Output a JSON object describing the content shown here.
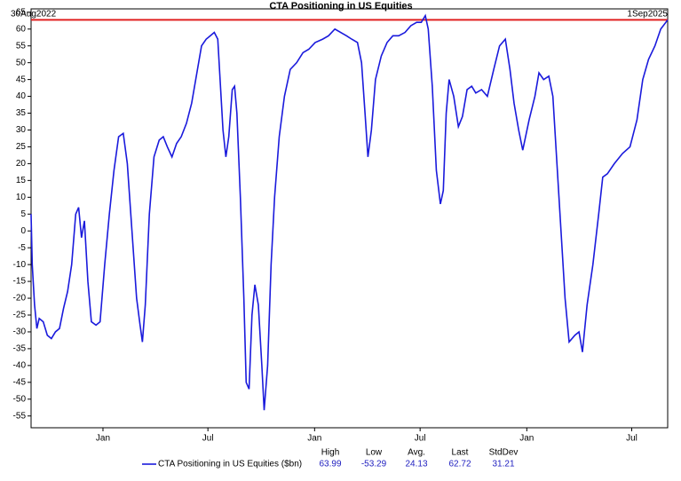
{
  "chart_data": {
    "type": "line",
    "title": "CTA Positioning in US Equities",
    "start_label": "30Aug2022",
    "end_label": "1Sep2025",
    "xlim": [
      "2022-08-30",
      "2025-09-01"
    ],
    "xticks": [
      {
        "value": "2023-01-01",
        "label": "Jan"
      },
      {
        "value": "2023-07-01",
        "label": "Jul"
      },
      {
        "value": "2024-01-01",
        "label": "Jan"
      },
      {
        "value": "2024-07-01",
        "label": "Jul"
      },
      {
        "value": "2025-01-01",
        "label": "Jan"
      },
      {
        "value": "2025-07-01",
        "label": "Jul"
      }
    ],
    "ylim": [
      -58.5,
      66
    ],
    "yticks": [
      65,
      60,
      55,
      50,
      45,
      40,
      35,
      30,
      25,
      20,
      15,
      10,
      5,
      0,
      -5,
      -10,
      -15,
      -20,
      -25,
      -30,
      -35,
      -40,
      -45,
      -50,
      -55
    ],
    "reference_line": {
      "value": 62.72,
      "color": "#e02020"
    },
    "x": [
      "2022-08-30",
      "2022-09-01",
      "2022-09-05",
      "2022-09-09",
      "2022-09-13",
      "2022-09-20",
      "2022-09-27",
      "2022-10-04",
      "2022-10-11",
      "2022-10-18",
      "2022-10-25",
      "2022-11-01",
      "2022-11-08",
      "2022-11-15",
      "2022-11-20",
      "2022-11-25",
      "2022-11-30",
      "2022-12-06",
      "2022-12-12",
      "2022-12-20",
      "2022-12-27",
      "2023-01-04",
      "2023-01-12",
      "2023-01-20",
      "2023-01-28",
      "2023-02-05",
      "2023-02-12",
      "2023-02-20",
      "2023-02-28",
      "2023-03-06",
      "2023-03-10",
      "2023-03-15",
      "2023-03-22",
      "2023-03-30",
      "2023-04-08",
      "2023-04-15",
      "2023-04-22",
      "2023-04-30",
      "2023-05-08",
      "2023-05-16",
      "2023-05-25",
      "2023-06-03",
      "2023-06-12",
      "2023-06-20",
      "2023-06-28",
      "2023-07-05",
      "2023-07-12",
      "2023-07-18",
      "2023-07-22",
      "2023-07-27",
      "2023-08-01",
      "2023-08-06",
      "2023-08-12",
      "2023-08-16",
      "2023-08-20",
      "2023-08-26",
      "2023-09-01",
      "2023-09-05",
      "2023-09-10",
      "2023-09-15",
      "2023-09-20",
      "2023-09-26",
      "2023-10-02",
      "2023-10-06",
      "2023-10-12",
      "2023-10-18",
      "2023-10-24",
      "2023-11-01",
      "2023-11-10",
      "2023-11-20",
      "2023-12-01",
      "2023-12-12",
      "2023-12-22",
      "2024-01-02",
      "2024-01-15",
      "2024-01-25",
      "2024-02-05",
      "2024-02-15",
      "2024-02-25",
      "2024-03-05",
      "2024-03-15",
      "2024-03-22",
      "2024-03-28",
      "2024-04-02",
      "2024-04-08",
      "2024-04-15",
      "2024-04-25",
      "2024-05-05",
      "2024-05-15",
      "2024-05-25",
      "2024-06-05",
      "2024-06-15",
      "2024-06-25",
      "2024-07-03",
      "2024-07-10",
      "2024-07-15",
      "2024-07-22",
      "2024-07-29",
      "2024-08-05",
      "2024-08-10",
      "2024-08-15",
      "2024-08-20",
      "2024-08-28",
      "2024-09-05",
      "2024-09-12",
      "2024-09-20",
      "2024-09-28",
      "2024-10-05",
      "2024-10-15",
      "2024-10-25",
      "2024-11-05",
      "2024-11-15",
      "2024-11-25",
      "2024-12-03",
      "2024-12-10",
      "2024-12-18",
      "2024-12-25",
      "2025-01-05",
      "2025-01-15",
      "2025-01-22",
      "2025-01-30",
      "2025-02-08",
      "2025-02-15",
      "2025-02-22",
      "2025-03-01",
      "2025-03-08",
      "2025-03-15",
      "2025-03-25",
      "2025-04-01",
      "2025-04-07",
      "2025-04-15",
      "2025-04-25",
      "2025-05-05",
      "2025-05-12",
      "2025-05-20",
      "2025-06-01",
      "2025-06-15",
      "2025-06-28",
      "2025-07-10",
      "2025-07-20",
      "2025-07-30",
      "2025-08-10",
      "2025-08-20",
      "2025-09-01"
    ],
    "series": [
      {
        "name": "CTA Positioning in US Equities ($bn)",
        "color": "#1a1adc",
        "values": [
          5,
          -10,
          -22,
          -29,
          -26,
          -27,
          -31,
          -32,
          -30,
          -29,
          -23,
          -18,
          -10,
          5,
          7,
          -2,
          3,
          -15,
          -27,
          -28,
          -27,
          -10,
          5,
          18,
          28,
          29,
          20,
          0,
          -20,
          -28,
          -33,
          -22,
          5,
          22,
          27,
          28,
          25,
          22,
          26,
          28,
          32,
          38,
          47,
          55,
          57,
          58,
          59,
          57,
          45,
          30,
          22,
          28,
          42,
          43,
          35,
          10,
          -20,
          -45,
          -47,
          -25,
          -16,
          -22,
          -40,
          -53.29,
          -40,
          -10,
          10,
          28,
          40,
          48,
          50,
          53,
          54,
          56,
          57,
          58,
          60,
          59,
          58,
          57,
          56,
          50,
          35,
          22,
          30,
          45,
          52,
          56,
          58,
          58,
          59,
          61,
          62,
          62,
          63.99,
          60,
          43,
          18,
          8,
          12,
          35,
          45,
          40,
          31,
          34,
          42,
          43,
          41,
          42,
          40,
          48,
          55,
          57,
          48,
          38,
          30,
          24,
          33,
          40,
          47,
          45,
          46,
          40,
          20,
          0,
          -20,
          -33,
          -31,
          -30,
          -36,
          -22,
          -10,
          5,
          16,
          17,
          20,
          23,
          25,
          33,
          45,
          51,
          55,
          60,
          62.72
        ]
      }
    ],
    "stats": {
      "labels": [
        "High",
        "Low",
        "Avg.",
        "Last",
        "StdDev"
      ],
      "values": [
        63.99,
        -53.29,
        24.13,
        62.72,
        31.21
      ]
    }
  }
}
